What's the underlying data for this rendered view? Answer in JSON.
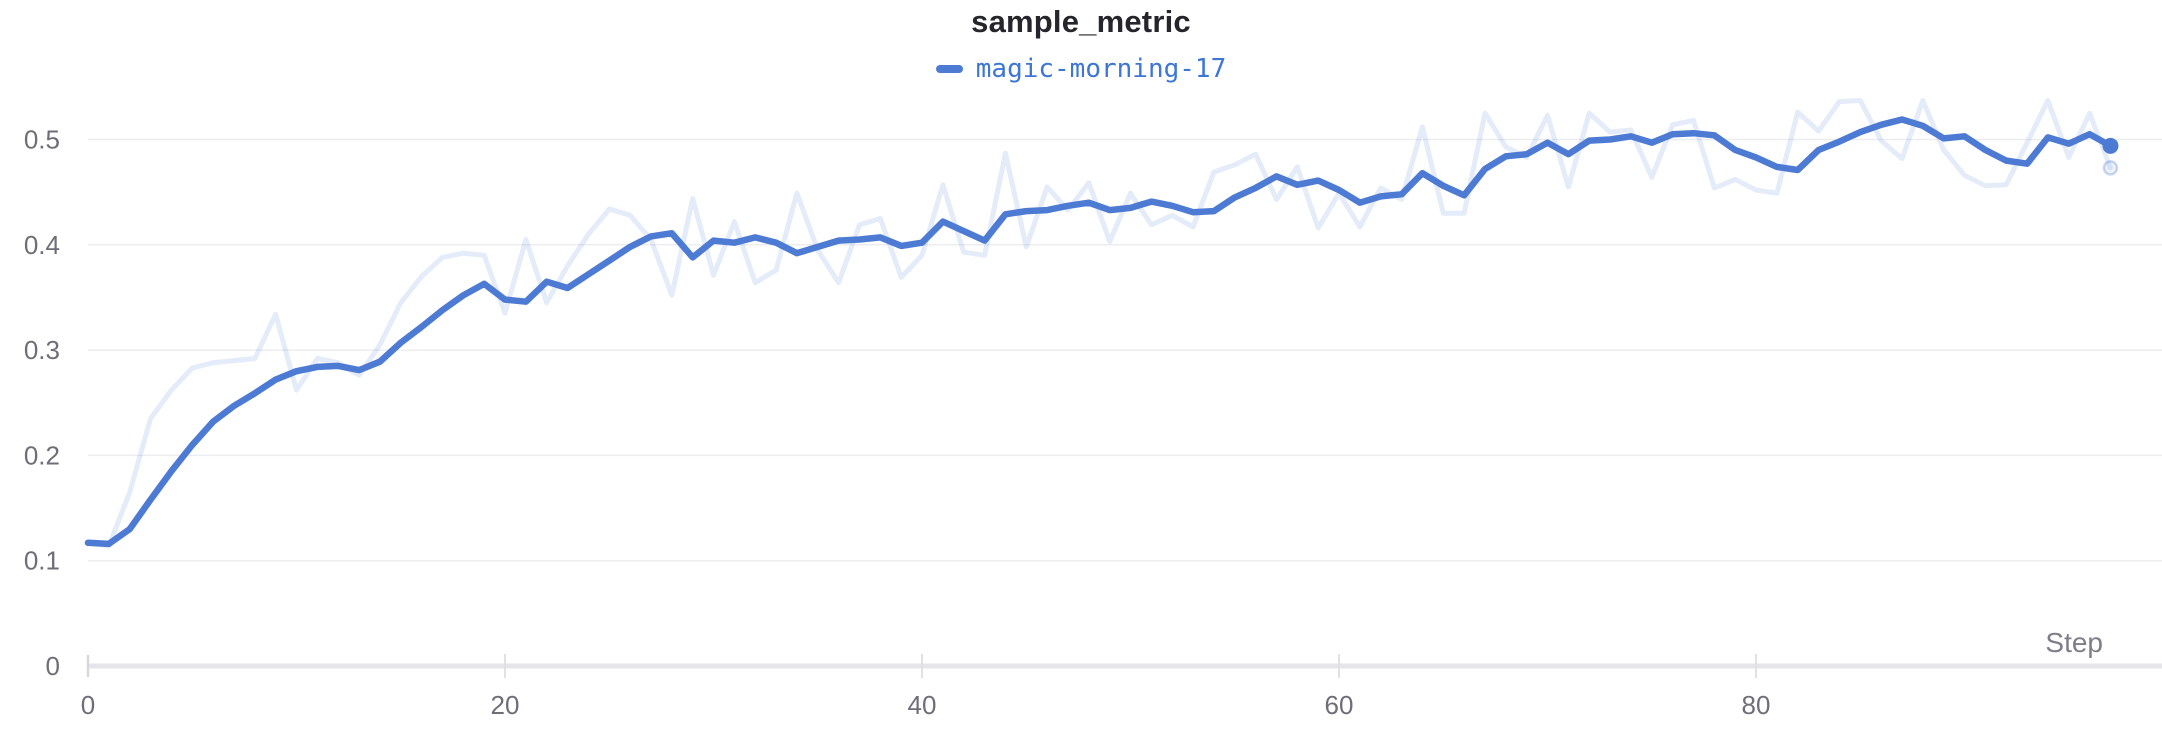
{
  "chart": {
    "title": "sample_metric",
    "legend": {
      "series": "magic-morning-17"
    },
    "x_axis": {
      "label": "Step",
      "ticks": [
        0,
        20,
        40,
        60,
        80
      ],
      "tick_labels": [
        "0",
        "20",
        "40",
        "60",
        "80"
      ]
    },
    "y_axis": {
      "ticks": [
        0,
        0.1,
        0.2,
        0.3,
        0.4,
        0.5
      ],
      "tick_labels": [
        "0",
        "0.1",
        "0.2",
        "0.3",
        "0.4",
        "0.5"
      ]
    },
    "colors": {
      "accent": "#4d7bd4",
      "legend_text": "#3e76d6",
      "ghost_line": "rgba(77,123,212,0.15)",
      "ghost_dot_fill": "rgba(77,123,212,0.10)",
      "ghost_dot_stroke": "rgba(77,123,212,0.30)",
      "grid_line": "#ededf0",
      "axis_baseline": "#e6e6ea",
      "x_tick_mark": "#e0e0e5",
      "origin_tick_mark": "#d7d7dc",
      "tick_text": "#6e6e79",
      "axis_title_text": "#7e7e88",
      "title_text": "#25262c"
    }
  },
  "chart_data": {
    "type": "line",
    "title": "sample_metric",
    "xlabel": "Step",
    "ylabel": "",
    "x_start": 0,
    "x_step": 1,
    "n_points": 98,
    "x_range": [
      0,
      99.5
    ],
    "y_range": [
      0,
      0.55
    ],
    "x_ticks": [
      0,
      20,
      40,
      60,
      80
    ],
    "y_ticks": [
      0,
      0.1,
      0.2,
      0.3,
      0.4,
      0.5
    ],
    "grid": "horizontal",
    "legend_position": "top-center",
    "series": [
      {
        "name": "magic-morning-17",
        "role": "smoothed",
        "values": [
          0.117,
          0.116,
          0.13,
          0.158,
          0.185,
          0.21,
          0.232,
          0.247,
          0.259,
          0.272,
          0.28,
          0.284,
          0.285,
          0.281,
          0.289,
          0.307,
          0.322,
          0.338,
          0.352,
          0.363,
          0.348,
          0.346,
          0.365,
          0.359,
          0.372,
          0.385,
          0.398,
          0.408,
          0.411,
          0.388,
          0.404,
          0.402,
          0.407,
          0.402,
          0.392,
          0.398,
          0.404,
          0.405,
          0.407,
          0.399,
          0.402,
          0.422,
          0.413,
          0.404,
          0.429,
          0.432,
          0.433,
          0.437,
          0.44,
          0.433,
          0.435,
          0.441,
          0.437,
          0.431,
          0.432,
          0.445,
          0.454,
          0.465,
          0.457,
          0.461,
          0.452,
          0.44,
          0.446,
          0.448,
          0.468,
          0.456,
          0.447,
          0.472,
          0.484,
          0.486,
          0.497,
          0.486,
          0.499,
          0.5,
          0.503,
          0.497,
          0.505,
          0.506,
          0.504,
          0.49,
          0.483,
          0.474,
          0.471,
          0.49,
          0.498,
          0.507,
          0.514,
          0.519,
          0.513,
          0.501,
          0.503,
          0.49,
          0.48,
          0.477,
          0.502,
          0.496,
          0.505,
          0.494
        ]
      },
      {
        "name": "magic-morning-17 (original)",
        "role": "raw",
        "values": [
          0.117,
          0.114,
          0.165,
          0.235,
          0.262,
          0.283,
          0.288,
          0.29,
          0.292,
          0.334,
          0.262,
          0.292,
          0.288,
          0.276,
          0.305,
          0.345,
          0.37,
          0.388,
          0.392,
          0.39,
          0.335,
          0.405,
          0.345,
          0.38,
          0.41,
          0.434,
          0.428,
          0.405,
          0.352,
          0.444,
          0.371,
          0.422,
          0.364,
          0.376,
          0.449,
          0.395,
          0.364,
          0.419,
          0.425,
          0.369,
          0.39,
          0.457,
          0.393,
          0.39,
          0.487,
          0.398,
          0.455,
          0.433,
          0.459,
          0.403,
          0.449,
          0.419,
          0.428,
          0.417,
          0.469,
          0.476,
          0.486,
          0.443,
          0.474,
          0.416,
          0.449,
          0.417,
          0.454,
          0.443,
          0.512,
          0.43,
          0.43,
          0.525,
          0.493,
          0.483,
          0.523,
          0.455,
          0.525,
          0.507,
          0.509,
          0.464,
          0.514,
          0.518,
          0.454,
          0.462,
          0.452,
          0.449,
          0.526,
          0.508,
          0.536,
          0.537,
          0.499,
          0.482,
          0.537,
          0.49,
          0.466,
          0.456,
          0.457,
          0.497,
          0.537,
          0.483,
          0.525,
          0.473
        ]
      }
    ]
  }
}
